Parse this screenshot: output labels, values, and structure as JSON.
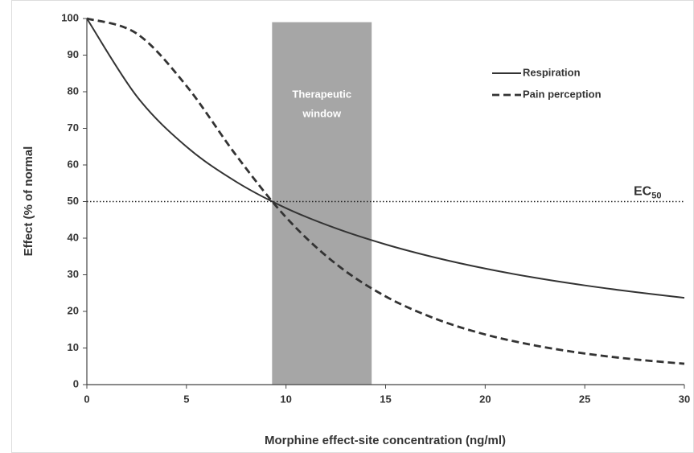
{
  "chart_data": {
    "type": "line",
    "x_label": "Morphine effect-site concentration (ng/ml)",
    "y_label": "Effect (% of normal",
    "x": [
      0,
      2.5,
      5,
      7.5,
      10,
      12.5,
      15,
      17.5,
      20,
      22.5,
      25,
      27.5,
      30
    ],
    "series": [
      {
        "name": "Respiration",
        "color": "#333333",
        "dash": "solid",
        "values": [
          100,
          78.8,
          65.0,
          55.4,
          48.2,
          42.7,
          38.3,
          34.7,
          31.7,
          29.2,
          27.1,
          25.3,
          23.7
        ]
      },
      {
        "name": "Pain perception",
        "color": "#333333",
        "dash": "dashed",
        "values": [
          100,
          95.9,
          81.6,
          62.6,
          45.7,
          33.0,
          24.1,
          18.0,
          13.7,
          10.7,
          8.5,
          6.9,
          5.7
        ]
      }
    ],
    "xlim": [
      0,
      30
    ],
    "xticks": [
      0,
      5,
      10,
      15,
      20,
      25,
      30
    ],
    "ylim": [
      0,
      100
    ],
    "yticks": [
      0,
      10,
      20,
      30,
      40,
      50,
      60,
      70,
      80,
      90,
      100
    ],
    "band": {
      "xlim": [
        9.3,
        14.3
      ],
      "top": 99,
      "color": "#a6a6a6",
      "label": [
        "Therapeutic",
        "window"
      ]
    },
    "reference_line": {
      "value": 50,
      "label": "EC",
      "subscript": "50"
    },
    "legend": "top-right"
  }
}
